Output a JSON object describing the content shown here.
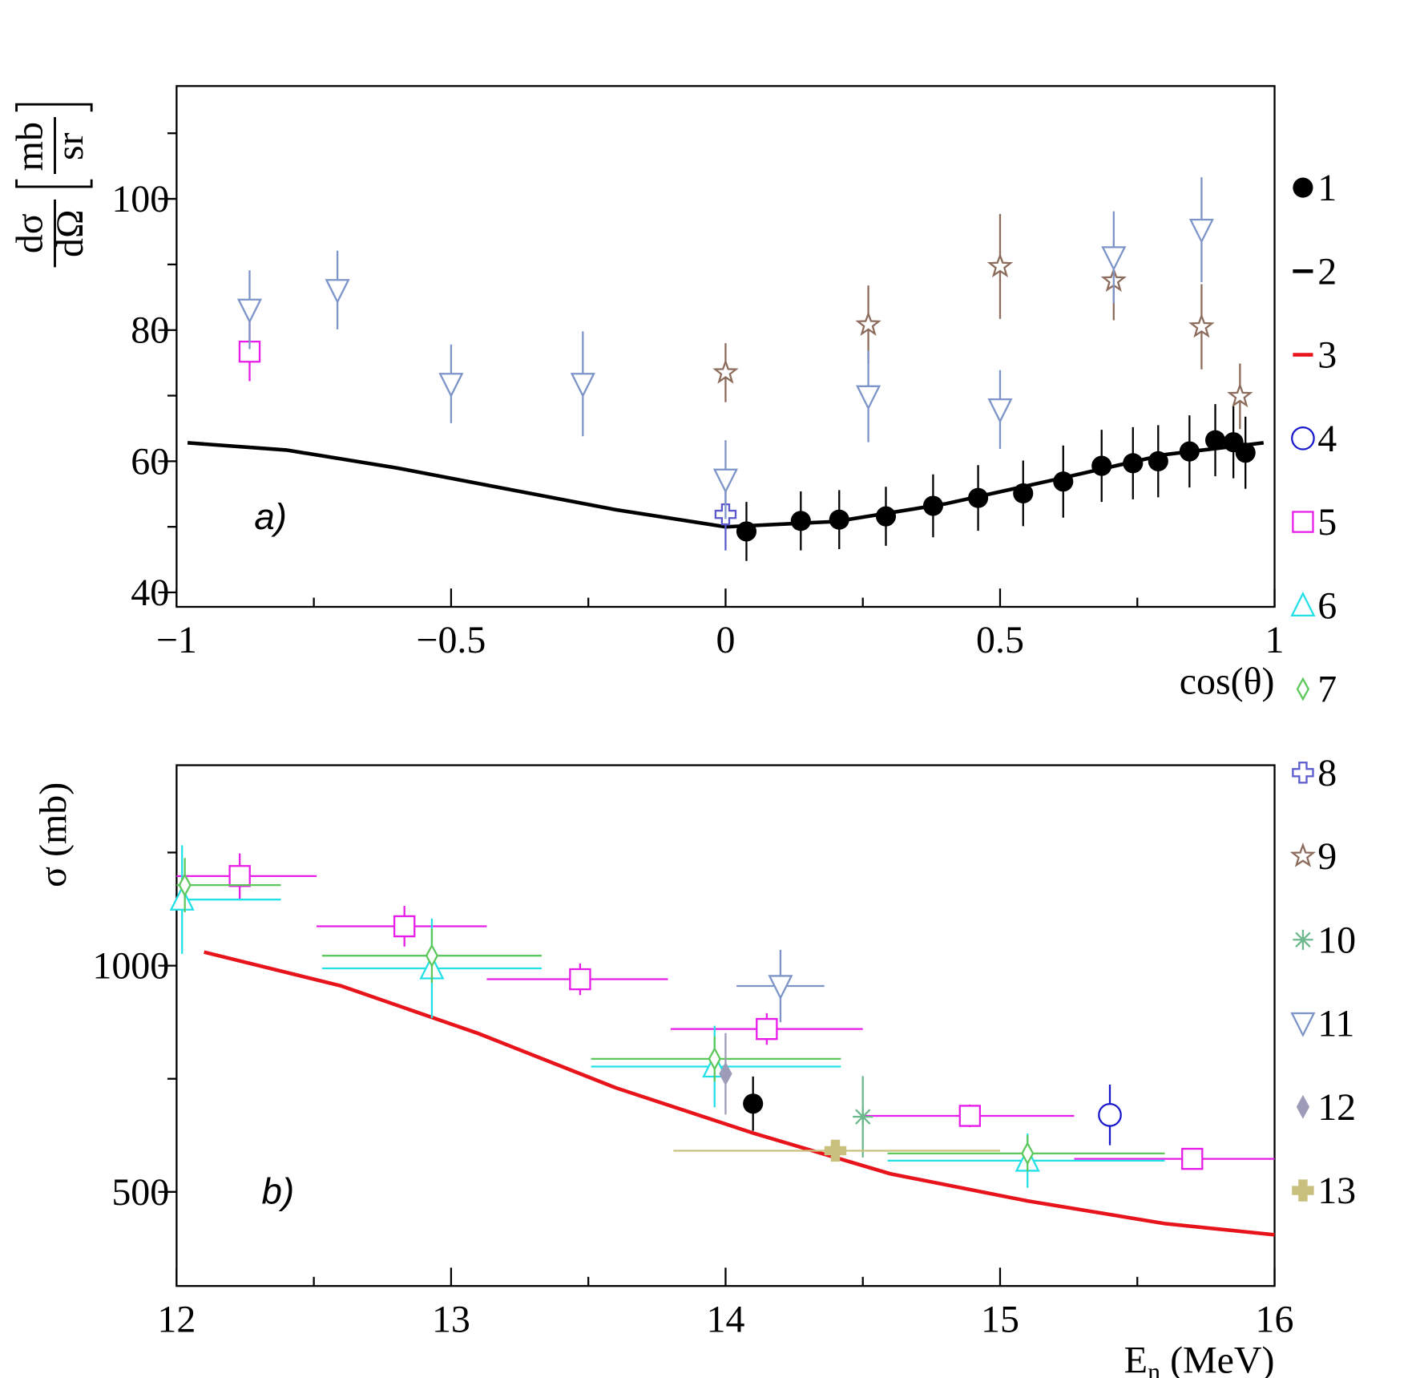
{
  "legend": [
    {
      "name": "1",
      "color": "#000000",
      "marker": "circle-filled"
    },
    {
      "name": "2",
      "color": "#000000",
      "marker": "line"
    },
    {
      "name": "3",
      "color": "#e8141c",
      "marker": "line"
    },
    {
      "name": "4",
      "color": "#1a1acc",
      "marker": "circle-open"
    },
    {
      "name": "5",
      "color": "#e81ce8",
      "marker": "square-open"
    },
    {
      "name": "6",
      "color": "#22e0e8",
      "marker": "triangle-up-open"
    },
    {
      "name": "7",
      "color": "#5cc85c",
      "marker": "diamond-open"
    },
    {
      "name": "8",
      "color": "#5a5acc",
      "marker": "cross-open"
    },
    {
      "name": "9",
      "color": "#8c6c5c",
      "marker": "star-open"
    },
    {
      "name": "10",
      "color": "#6cb88c",
      "marker": "asterisk"
    },
    {
      "name": "11",
      "color": "#7c94c8",
      "marker": "triangle-down-open"
    },
    {
      "name": "12",
      "color": "#9c9cb8",
      "marker": "diamond-filled"
    },
    {
      "name": "13",
      "color": "#c8c07c",
      "marker": "cross-filled"
    }
  ],
  "chart_data": [
    {
      "type": "scatter",
      "annotation": "a)",
      "y_label": {
        "numerator": "dσ",
        "denominator": "dΩ",
        "unit_numerator": "mb",
        "unit_denominator": "sr"
      },
      "x_label": "cos(θ)",
      "xlim": [
        -1,
        1
      ],
      "ylim": [
        37.8,
        117.2
      ],
      "xticks": [
        {
          "value": -1,
          "label": "−1"
        },
        {
          "value": -0.5,
          "label": "−0.5"
        },
        0,
        0.5,
        1
      ],
      "yticks": [
        40,
        60,
        80,
        100
      ],
      "series": [
        {
          "name": "1",
          "x": [
            0.038,
            0.137,
            0.207,
            0.292,
            0.378,
            0.46,
            0.542,
            0.615,
            0.685,
            0.742,
            0.788,
            0.845,
            0.892,
            0.925,
            0.947
          ],
          "values": [
            49.3,
            50.9,
            51.1,
            51.6,
            53.2,
            54.4,
            55.1,
            56.9,
            59.3,
            59.7,
            60.0,
            61.5,
            63.2,
            62.9,
            61.3
          ],
          "errors": [
            4.5,
            4.5,
            4.5,
            4.5,
            4.8,
            5,
            5,
            5.5,
            5.5,
            5.5,
            5.5,
            5.5,
            5.5,
            5.5,
            5.5
          ]
        },
        {
          "name": "2",
          "x": [
            -0.98,
            -0.8,
            -0.6,
            -0.4,
            -0.2,
            0,
            0.2,
            0.4,
            0.6,
            0.8,
            0.98
          ],
          "values": [
            62.8,
            61.7,
            59.0,
            55.8,
            52.6,
            50.0,
            50.8,
            53.5,
            57.2,
            61.0,
            62.8
          ]
        },
        {
          "name": "5",
          "x": [
            -0.867
          ],
          "values": [
            76.7
          ],
          "errors": [
            4.5
          ]
        },
        {
          "name": "8",
          "x": [
            0
          ],
          "values": [
            51.9
          ],
          "errors": [
            5.5
          ]
        },
        {
          "name": "9",
          "x": [
            0,
            0.26,
            0.5,
            0.707,
            0.867,
            0.937
          ],
          "values": [
            73.5,
            80.8,
            89.7,
            87.5,
            80.5,
            69.9
          ],
          "errors": [
            4.5,
            6,
            8,
            6,
            6.5,
            5
          ]
        },
        {
          "name": "11",
          "x": [
            -0.867,
            -0.707,
            -0.5,
            -0.26,
            0,
            0.26,
            0.5,
            0.707,
            0.867
          ],
          "values": [
            83.1,
            86.1,
            71.8,
            71.8,
            57.2,
            69.9,
            67.9,
            91.1,
            95.3
          ],
          "errors": [
            6,
            6,
            6,
            8,
            6,
            7,
            6,
            7,
            8
          ]
        }
      ]
    },
    {
      "type": "scatter",
      "annotation": "b)",
      "y_label": "σ (mb)",
      "x_label": {
        "main": "E",
        "subscript": "n",
        "rest": " (MeV)"
      },
      "xlim": [
        12,
        16
      ],
      "ylim": [
        292,
        1443
      ],
      "xticks": [
        12,
        13,
        14,
        15,
        16
      ],
      "yticks": [
        500,
        1000
      ],
      "series": [
        {
          "name": "3",
          "x": [
            12.1,
            12.6,
            13.1,
            13.6,
            14.1,
            14.6,
            15.1,
            15.6,
            16
          ],
          "values": [
            1030,
            955,
            850,
            730,
            630,
            540,
            480,
            430,
            405
          ]
        },
        {
          "name": "1",
          "x": [
            14.1
          ],
          "values": [
            695
          ],
          "errors": [
            60
          ]
        },
        {
          "name": "4",
          "x": [
            15.4
          ],
          "values": [
            670
          ],
          "errors": [
            67
          ]
        },
        {
          "name": "5",
          "x": [
            12.23,
            12.83,
            13.47,
            14.15,
            14.89,
            15.7
          ],
          "values": [
            1198,
            1087,
            970,
            860,
            668,
            573
          ],
          "errors": [
            50,
            45,
            35,
            35,
            25,
            20
          ],
          "xerr": [
            [
              0.23,
              0.28
            ],
            [
              0.32,
              0.3
            ],
            [
              0.34,
              0.32
            ],
            [
              0.35,
              0.35
            ],
            [
              0.39,
              0.38
            ],
            [
              0.43,
              0.3
            ]
          ]
        },
        {
          "name": "6",
          "x": [
            12.02,
            12.93,
            13.96,
            15.1
          ],
          "values": [
            1146,
            994,
            777,
            569
          ],
          "errors": [
            120,
            110,
            90,
            60
          ],
          "xerr": [
            [
              0.02,
              0.36
            ],
            [
              0.4,
              0.4
            ],
            [
              0.45,
              0.46
            ],
            [
              0.51,
              0.5
            ]
          ]
        },
        {
          "name": "7",
          "x": [
            12.03,
            12.93,
            13.96,
            15.1
          ],
          "values": [
            1178,
            1022,
            794,
            585
          ],
          "errors": [
            60,
            60,
            50,
            40
          ],
          "xerr": [
            [
              0.03,
              0.35
            ],
            [
              0.4,
              0.4
            ],
            [
              0.45,
              0.46
            ],
            [
              0.51,
              0.5
            ]
          ]
        },
        {
          "name": "10",
          "x": [
            14.5
          ],
          "values": [
            666
          ],
          "errors": [
            90
          ]
        },
        {
          "name": "11",
          "x": [
            14.2
          ],
          "values": [
            955
          ],
          "errors": [
            80
          ],
          "xerr": [
            [
              0.16,
              0.16
            ]
          ]
        },
        {
          "name": "12",
          "x": [
            14.0
          ],
          "values": [
            761
          ],
          "errors": [
            90
          ]
        },
        {
          "name": "13",
          "x": [
            14.4
          ],
          "values": [
            591
          ],
          "errors": [
            10
          ],
          "xerr": [
            [
              0.59,
              0.6
            ]
          ]
        }
      ]
    }
  ]
}
